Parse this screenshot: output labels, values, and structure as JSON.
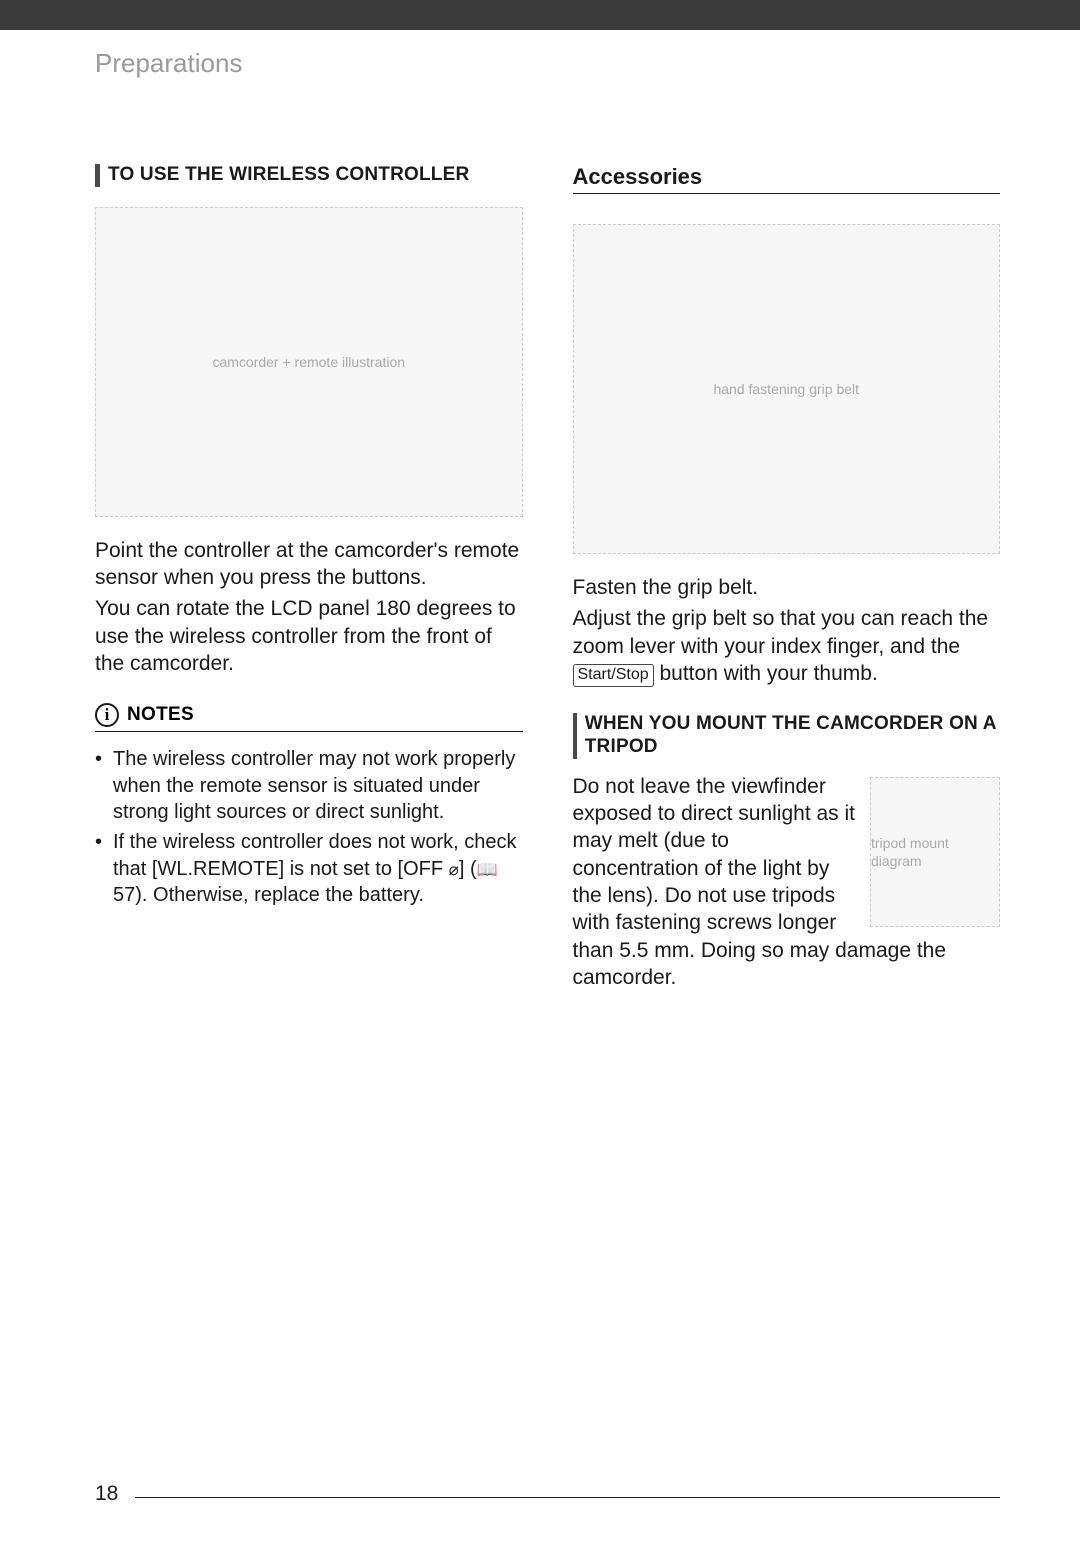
{
  "header": {
    "section": "Preparations"
  },
  "page_number": "18",
  "left": {
    "heading": "TO USE THE WIRELESS CONTROLLER",
    "p1": "Point the controller at the camcorder's remote sensor when you press the buttons.",
    "p2": "You can rotate the LCD panel 180 degrees to use the wireless controller from the front of the camcorder.",
    "notes_label": "NOTES",
    "note1": "The wireless controller may not work properly when the remote sensor is situated under strong light sources or direct sunlight.",
    "note2_a": "If the wireless controller does not work, check that [WL.REMOTE] is not set to [OFF ",
    "note2_b": "] (",
    "note2_c": " 57). Otherwise, replace the battery.",
    "illus_alt": "camcorder + remote illustration"
  },
  "right": {
    "title": "Accessories",
    "p1": "Fasten the grip belt.",
    "p2_a": "Adjust the grip belt so that you can reach the zoom lever with your index finger, and the ",
    "p2_btn": "Start/Stop",
    "p2_b": " button with your thumb.",
    "tripod_heading": "WHEN YOU MOUNT THE CAMCORDER ON A TRIPOD",
    "tripod_text": "Do not leave the viewfinder exposed to direct sunlight as it may melt (due to concentration of the light by the lens). Do not use tripods with fastening screws longer than 5.5 mm. Doing so may damage the camcorder.",
    "illus_alt": "hand fastening grip belt",
    "tripod_illus_alt": "tripod mount diagram"
  }
}
